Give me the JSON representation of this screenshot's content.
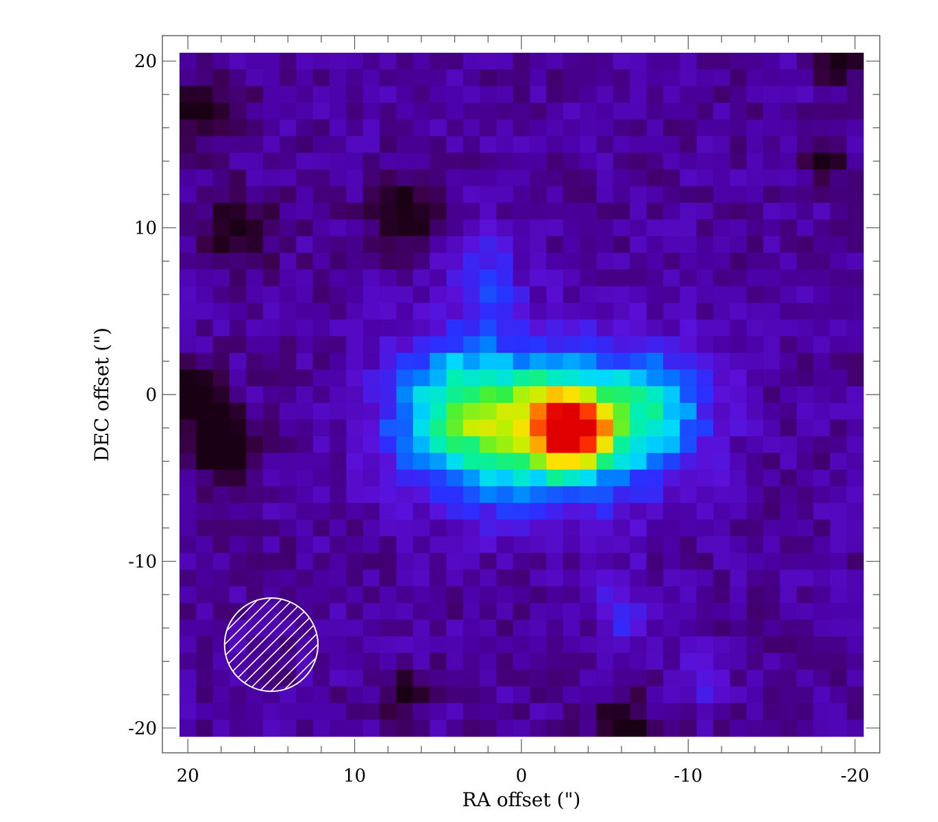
{
  "chart_data": {
    "type": "heatmap",
    "title": "",
    "xlabel": "RA offset (\")",
    "ylabel": "DEC offset (\")",
    "xlim": [
      20.5,
      -20.5
    ],
    "ylim": [
      -20.5,
      20.5
    ],
    "x_ticks": [
      20,
      10,
      0,
      -10,
      -20
    ],
    "y_ticks": [
      20,
      10,
      0,
      -10,
      -20
    ],
    "x_tick_labels": [
      "20",
      "10",
      "0",
      "-10",
      "-20"
    ],
    "y_tick_labels": [
      "20",
      "10",
      "0",
      "-10",
      "-20"
    ],
    "x_minor_step": 2,
    "y_minor_step": 2,
    "pixel_size_arcsec": 1,
    "colormap": [
      "#1a0014",
      "#3a0048",
      "#4a00a0",
      "#5a10d8",
      "#2a30ff",
      "#0080ff",
      "#00d8ff",
      "#00f0b0",
      "#30f040",
      "#c0f000",
      "#ffe000",
      "#ff8000",
      "#ff2000",
      "#e00000"
    ],
    "background_color": "#4a00a0",
    "emission_components": [
      {
        "shape": "gaussian",
        "x_center": -3,
        "y_center": -2,
        "sigma_x": 1.6,
        "sigma_y": 1.6,
        "amplitude": 0.55
      },
      {
        "shape": "gaussian",
        "x_center": -1.5,
        "y_center": -2,
        "sigma_x": 4.3,
        "sigma_y": 3.2,
        "amplitude": 0.42
      },
      {
        "shape": "gaussian",
        "x_center": 4,
        "y_center": -1,
        "sigma_x": 3.0,
        "sigma_y": 3.0,
        "amplitude": 0.3
      },
      {
        "shape": "gaussian",
        "x_center": -8,
        "y_center": -1,
        "sigma_x": 2.5,
        "sigma_y": 2.6,
        "amplitude": 0.24
      },
      {
        "shape": "gaussian",
        "x_center": 2,
        "y_center": 7,
        "sigma_x": 1.6,
        "sigma_y": 2.2,
        "amplitude": 0.12
      },
      {
        "shape": "gaussian",
        "x_center": -6,
        "y_center": -13,
        "sigma_x": 1.0,
        "sigma_y": 1.6,
        "amplitude": 0.12
      },
      {
        "shape": "gaussian",
        "x_center": -11,
        "y_center": -17,
        "sigma_x": 0.8,
        "sigma_y": 1.2,
        "amplitude": 0.12
      }
    ],
    "dark_regions": [
      {
        "x_center": 18,
        "y_center": -3,
        "sigma": 1.3,
        "depth": 0.3
      },
      {
        "x_center": 19.5,
        "y_center": 0,
        "sigma": 1.0,
        "depth": 0.25
      },
      {
        "x_center": 17,
        "y_center": 10,
        "sigma": 1.5,
        "depth": 0.15
      },
      {
        "x_center": 7,
        "y_center": 11,
        "sigma": 1.5,
        "depth": 0.18
      },
      {
        "x_center": -19,
        "y_center": 20,
        "sigma": 1.0,
        "depth": 0.2
      },
      {
        "x_center": -18,
        "y_center": 14,
        "sigma": 0.8,
        "depth": 0.2
      },
      {
        "x_center": -6,
        "y_center": -20,
        "sigma": 1.2,
        "depth": 0.2
      },
      {
        "x_center": 7,
        "y_center": -18,
        "sigma": 1.0,
        "depth": 0.15
      },
      {
        "x_center": 19,
        "y_center": 17,
        "sigma": 1.5,
        "depth": 0.15
      }
    ],
    "beam": {
      "x_center": 15,
      "y_center": -15,
      "diameter_arcsec": 5.6,
      "hatch": "diagonal",
      "color": "#ffffff"
    }
  }
}
